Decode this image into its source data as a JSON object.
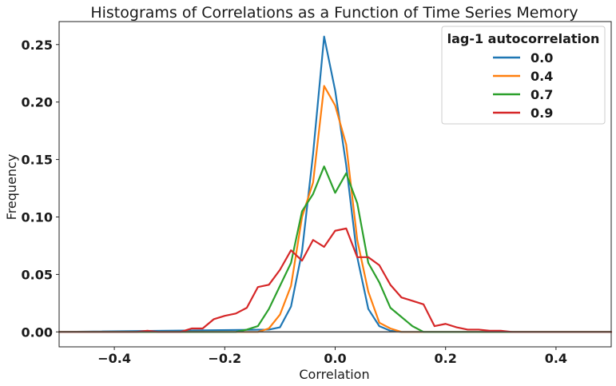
{
  "chart_data": {
    "type": "line",
    "title": "Histograms of Correlations as a Function of Time Series Memory",
    "xlabel": "Correlation",
    "ylabel": "Frequency",
    "xlim": [
      -0.5,
      0.5
    ],
    "ylim": [
      -0.013,
      0.27
    ],
    "xticks": [
      -0.4,
      -0.2,
      0.0,
      0.2,
      0.4
    ],
    "xtick_labels": [
      "−0.4",
      "−0.2",
      "0.0",
      "0.2",
      "0.4"
    ],
    "yticks": [
      0.0,
      0.05,
      0.1,
      0.15,
      0.2,
      0.25
    ],
    "ytick_labels": [
      "0.00",
      "0.05",
      "0.10",
      "0.15",
      "0.20",
      "0.25"
    ],
    "grid": false,
    "legend": {
      "title": "lag-1 autocorrelation",
      "placement": "top-right"
    },
    "series": [
      {
        "name": "0.0",
        "color": "#1f77b4",
        "x": [
          -0.5,
          -0.12,
          -0.1,
          -0.08,
          -0.06,
          -0.04,
          -0.02,
          0.0,
          0.02,
          0.04,
          0.06,
          0.08,
          0.1,
          0.12,
          0.5
        ],
        "y": [
          0,
          0.002,
          0.004,
          0.022,
          0.07,
          0.155,
          0.257,
          0.21,
          0.145,
          0.065,
          0.02,
          0.005,
          0.001,
          0,
          0
        ]
      },
      {
        "name": "0.4",
        "color": "#ff7f0e",
        "x": [
          -0.5,
          -0.14,
          -0.12,
          -0.1,
          -0.08,
          -0.06,
          -0.04,
          -0.02,
          0.0,
          0.02,
          0.04,
          0.06,
          0.08,
          0.1,
          0.12,
          0.5
        ],
        "y": [
          0,
          0,
          0.003,
          0.015,
          0.04,
          0.1,
          0.13,
          0.214,
          0.197,
          0.163,
          0.08,
          0.035,
          0.008,
          0.003,
          0,
          0
        ]
      },
      {
        "name": "0.7",
        "color": "#2ca02c",
        "x": [
          -0.5,
          -0.18,
          -0.16,
          -0.14,
          -0.12,
          -0.1,
          -0.08,
          -0.06,
          -0.04,
          -0.02,
          0.0,
          0.02,
          0.04,
          0.06,
          0.08,
          0.1,
          0.12,
          0.14,
          0.16,
          0.5
        ],
        "y": [
          0,
          0,
          0.002,
          0.005,
          0.02,
          0.04,
          0.06,
          0.105,
          0.12,
          0.144,
          0.121,
          0.138,
          0.112,
          0.06,
          0.043,
          0.021,
          0.013,
          0.005,
          0,
          0
        ]
      },
      {
        "name": "0.9",
        "color": "#d62728",
        "x": [
          -0.5,
          -0.36,
          -0.34,
          -0.32,
          -0.3,
          -0.28,
          -0.26,
          -0.24,
          -0.22,
          -0.2,
          -0.18,
          -0.16,
          -0.14,
          -0.12,
          -0.1,
          -0.08,
          -0.06,
          -0.04,
          -0.02,
          0.0,
          0.02,
          0.04,
          0.06,
          0.08,
          0.1,
          0.12,
          0.14,
          0.16,
          0.18,
          0.2,
          0.22,
          0.24,
          0.26,
          0.28,
          0.3,
          0.32,
          0.5
        ],
        "y": [
          0,
          0,
          0.001,
          0,
          0,
          0,
          0.003,
          0.003,
          0.011,
          0.014,
          0.016,
          0.021,
          0.039,
          0.041,
          0.054,
          0.071,
          0.062,
          0.08,
          0.074,
          0.088,
          0.09,
          0.065,
          0.065,
          0.058,
          0.041,
          0.03,
          0.027,
          0.024,
          0.005,
          0.007,
          0.004,
          0.002,
          0.002,
          0.001,
          0.001,
          0,
          0
        ]
      }
    ]
  }
}
